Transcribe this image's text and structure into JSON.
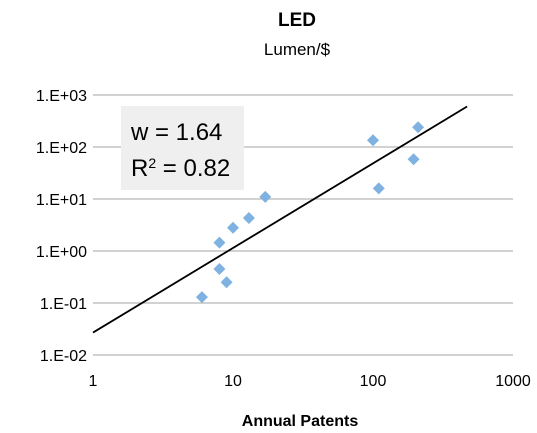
{
  "chart_data": {
    "type": "scatter",
    "title": "LED",
    "subtitle": "Lumen/$",
    "xlabel": "Annual Patents",
    "ylabel": "",
    "xscale": "log",
    "yscale": "log",
    "xlim": [
      1,
      1000
    ],
    "ylim": [
      0.01,
      1000
    ],
    "x_ticks": [
      1,
      10,
      100,
      1000
    ],
    "x_tick_labels": [
      "1",
      "10",
      "100",
      "1000"
    ],
    "y_ticks": [
      0.01,
      0.1,
      1,
      10,
      100,
      1000
    ],
    "y_tick_labels": [
      "1.E-02",
      "1.E-01",
      "1.E+00",
      "1.E+01",
      "1.E+02",
      "1.E+03"
    ],
    "grid": "horizontal",
    "legend": "none",
    "series": [
      {
        "kind": "points",
        "color": "#7fb2e0",
        "x": [
          6,
          8,
          8,
          9,
          10,
          13,
          17,
          100,
          110,
          195,
          210
        ],
        "y": [
          0.13,
          0.45,
          1.45,
          0.25,
          2.8,
          4.3,
          11,
          135,
          16,
          58,
          240
        ]
      },
      {
        "kind": "trendline",
        "color": "#000000",
        "x": [
          1,
          470
        ],
        "y": [
          0.027,
          600
        ]
      }
    ],
    "annotation": {
      "line1": "w = 1.64",
      "line2_prefix": "R",
      "line2_sup": "2",
      "line2_suffix": " = 0.82"
    }
  }
}
